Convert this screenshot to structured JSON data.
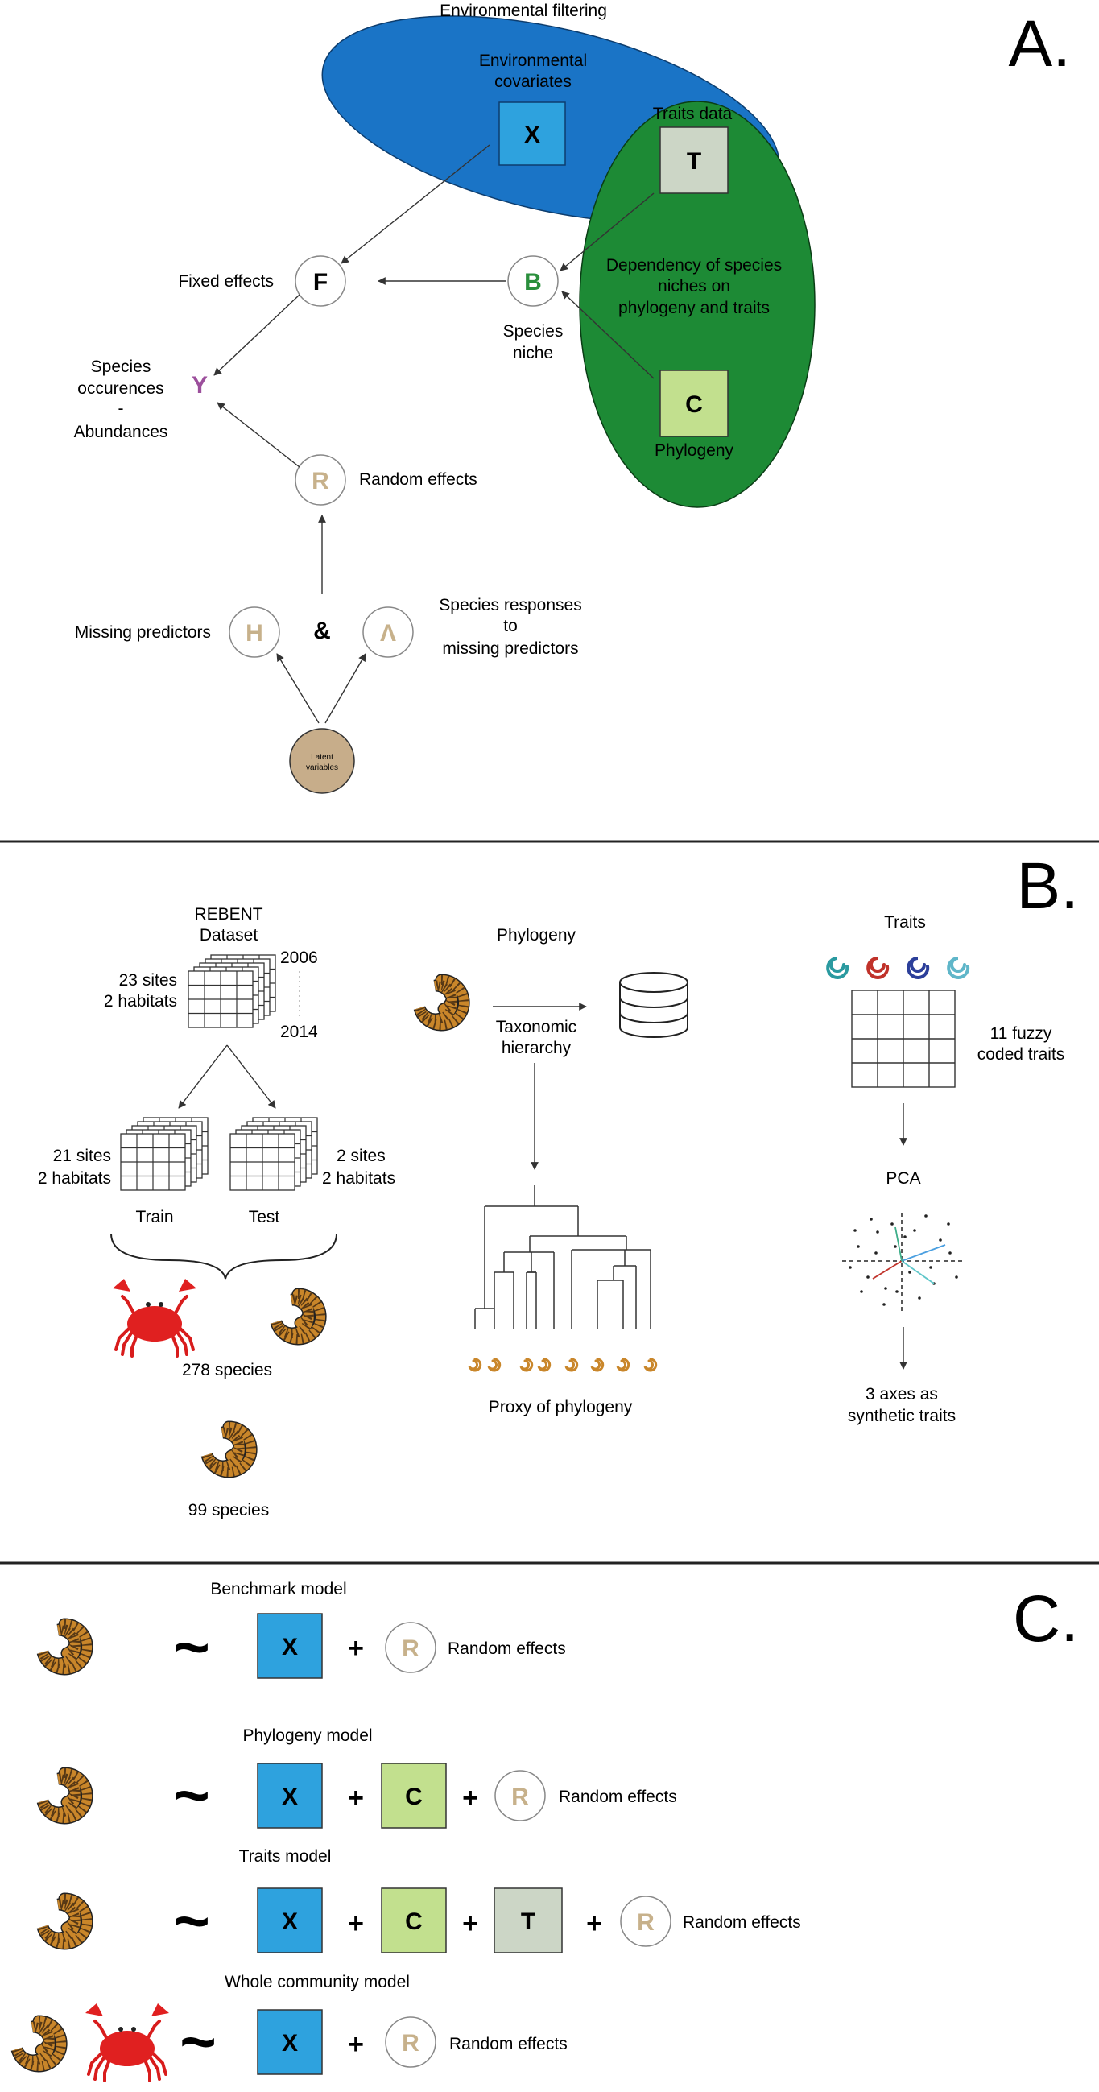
{
  "panel_a": {
    "letter": "A.",
    "env_filtering": "Environmental filtering",
    "env_covariates_l1": "Environmental",
    "env_covariates_l2": "covariates",
    "traits_data": "Traits data",
    "dependency_l1": "Dependency of species",
    "dependency_l2": "niches on",
    "dependency_l3": "phylogeny and traits",
    "phylogeny": "Phylogeny",
    "fixed_effects": "Fixed effects",
    "species_niche_l1": "Species",
    "species_niche_l2": "niche",
    "occ_l1": "Species",
    "occ_l2": "occurences",
    "occ_l3": "-",
    "occ_l4": "Abundances",
    "random_effects": "Random effects",
    "missing_predictors": "Missing predictors",
    "ampersand": "&",
    "responses_l1": "Species responses",
    "responses_l2": "to",
    "responses_l3": "missing predictors",
    "latent_l1": "Latent",
    "latent_l2": "variables",
    "sym_x": "X",
    "sym_t": "T",
    "sym_c": "C",
    "sym_f": "F",
    "sym_b": "B",
    "sym_y": "Y",
    "sym_r": "R",
    "sym_h": "H",
    "sym_lambda": "Λ"
  },
  "panel_b": {
    "letter": "B.",
    "rebent_l1": "REBENT",
    "rebent_l2": "Dataset",
    "year_start": "2006",
    "year_end": "2014",
    "sites_all_l1": "23 sites",
    "sites_all_l2": "2 habitats",
    "sites_train_l1": "21 sites",
    "sites_train_l2": "2 habitats",
    "sites_test_l1": "2 sites",
    "sites_test_l2": "2 habitats",
    "train": "Train",
    "test": "Test",
    "species_278": "278 species",
    "species_99": "99 species",
    "phylogeny": "Phylogeny",
    "taxo_l1": "Taxonomic",
    "taxo_l2": "hierarchy",
    "proxy": "Proxy of phylogeny",
    "traits": "Traits",
    "fuzzy_l1": "11 fuzzy",
    "fuzzy_l2": "coded traits",
    "pca": "PCA",
    "axes_l1": "3 axes as",
    "axes_l2": "synthetic traits"
  },
  "panel_c": {
    "letter": "C.",
    "tilde": "~",
    "plus": "+",
    "random_effects": "Random effects",
    "models": [
      {
        "name": "Benchmark model",
        "terms": [
          "X"
        ]
      },
      {
        "name": "Phylogeny model",
        "terms": [
          "X",
          "C"
        ]
      },
      {
        "name": "Traits model",
        "terms": [
          "X",
          "C",
          "T"
        ]
      },
      {
        "name": "Whole community model",
        "terms": [
          "X"
        ]
      }
    ],
    "sym_r": "R"
  },
  "colors": {
    "env_blue": "#1a74c6",
    "niche_green": "#1d8a35",
    "x_box": "#2ea2de",
    "t_box": "#ccd6c6",
    "c_box": "#c2e08e",
    "b_text": "#2a8f3c",
    "y_text": "#9c4f9c",
    "r_text": "#c7b18b",
    "latent_fill": "#c7ad8a",
    "worm": "#c9862a",
    "crab": "#e02020"
  }
}
